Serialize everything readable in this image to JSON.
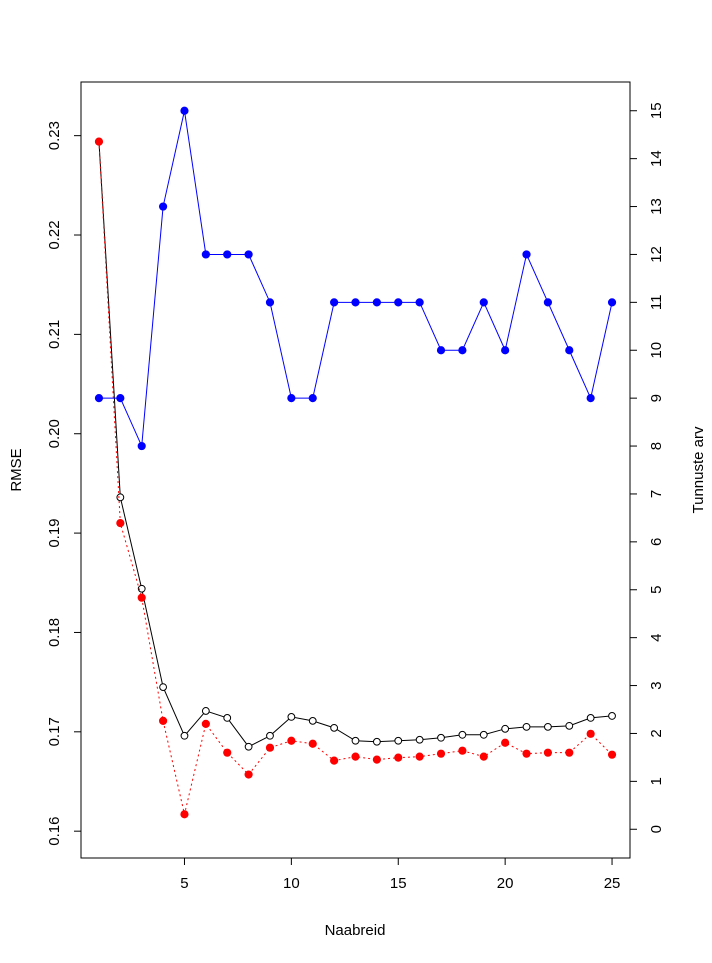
{
  "chart_data": {
    "type": "line",
    "xlabel": "Naabreid",
    "ylabel": "RMSE",
    "y2label": "Tunnuste arv",
    "x_ticks": [
      5,
      10,
      15,
      20,
      25
    ],
    "y_ticks": [
      0.16,
      0.17,
      0.18,
      0.19,
      0.2,
      0.21,
      0.22,
      0.23
    ],
    "y_tick_labels": [
      "0.16",
      "0.17",
      "0.18",
      "0.19",
      "0.20",
      "0.21",
      "0.22",
      "0.23"
    ],
    "y2_ticks": [
      0,
      1,
      2,
      3,
      4,
      5,
      6,
      7,
      8,
      9,
      10,
      11,
      12,
      13,
      14,
      15
    ],
    "xlim": [
      0.16,
      25.84
    ],
    "ylim": [
      0.1573,
      0.2354
    ],
    "y2lim": [
      -0.6,
      15.6
    ],
    "x": [
      1,
      2,
      3,
      4,
      5,
      6,
      7,
      8,
      9,
      10,
      11,
      12,
      13,
      14,
      15,
      16,
      17,
      18,
      19,
      20,
      21,
      22,
      23,
      24,
      25
    ],
    "series": [
      {
        "axis": "left",
        "color": "#000000",
        "marker": "open-circle",
        "linestyle": "solid",
        "values": [
          0.2294,
          0.1936,
          0.1844,
          0.1745,
          0.1696,
          0.1721,
          0.1714,
          0.1685,
          0.1696,
          0.1715,
          0.1711,
          0.1704,
          0.1691,
          0.169,
          0.1691,
          0.1692,
          0.1694,
          0.1697,
          0.1697,
          0.1703,
          0.1705,
          0.1705,
          0.1706,
          0.1714,
          0.1716
        ]
      },
      {
        "axis": "left",
        "color": "#ff0000",
        "marker": "filled-circle",
        "linestyle": "dotted",
        "values": [
          0.2294,
          0.191,
          0.1835,
          0.1711,
          0.1617,
          0.1708,
          0.1679,
          0.1657,
          0.1684,
          0.1691,
          0.1688,
          0.1671,
          0.1675,
          0.1672,
          0.1674,
          0.1675,
          0.1678,
          0.1681,
          0.1675,
          0.1689,
          0.1678,
          0.1679,
          0.1679,
          0.1698,
          0.1677
        ]
      },
      {
        "axis": "right",
        "color": "#0000ff",
        "marker": "filled-circle",
        "linestyle": "solid",
        "values": [
          9,
          9,
          8,
          13,
          15,
          12,
          12,
          12,
          11,
          9,
          9,
          11,
          11,
          11,
          11,
          11,
          10,
          10,
          11,
          10,
          12,
          11,
          10,
          9,
          11
        ]
      }
    ]
  }
}
